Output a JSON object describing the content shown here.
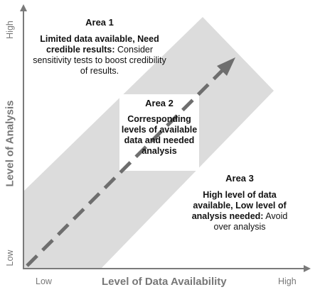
{
  "diagram": {
    "x_axis": {
      "title": "Level of Data Availability",
      "low": "Low",
      "high": "High"
    },
    "y_axis": {
      "title": "Level of Analysis",
      "low": "Low",
      "high": "High"
    },
    "area1": {
      "title": "Area 1",
      "bold_text": "Limited data available, Need credible results:",
      "text": "Consider sensitivity tests to boost credibility of results."
    },
    "area2": {
      "title": "Area 2",
      "text": "Corresponding levels of available data and needed analysis"
    },
    "area3": {
      "title": "Area 3",
      "bold_text": "High level of data available, Low level of analysis needed:",
      "text": "Avoid over analysis"
    },
    "colors": {
      "band": "#dcdcdc",
      "arrow": "#6e6e6e",
      "axis": "#7a7a7a",
      "axis_text": "#777777"
    }
  }
}
